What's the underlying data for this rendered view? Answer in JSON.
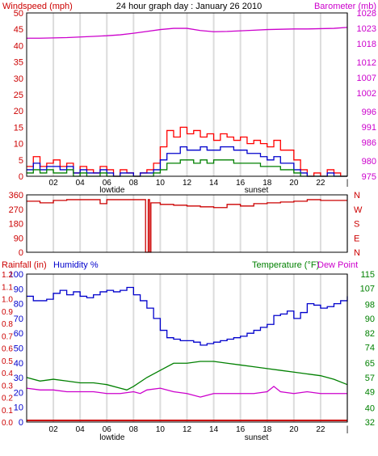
{
  "colors": {
    "background": "#ffffff",
    "plot_bg": "#ffffff",
    "frame": "#000000",
    "grid": "#dcdcdc",
    "windspeed": "#cc0000",
    "gust": "#ff0000",
    "wind_avg": "#0000cc",
    "wind_min": "#008000",
    "barometer": "#cc00cc",
    "direction": "#cc0000",
    "humidity": "#0000cc",
    "temperature": "#008000",
    "dewpoint": "#cc00cc",
    "rainfall": "#cc0000"
  },
  "chart_data": [
    {
      "type": "line",
      "title": "24 hour graph day : January 26 2010",
      "ylabel": "Windspeed (mph)",
      "ylabel_right": "Barometer (mb)",
      "ylim": [
        0,
        50
      ],
      "yticks": [
        0,
        5,
        10,
        15,
        20,
        25,
        30,
        35,
        40,
        45,
        50
      ],
      "y2lim": [
        975,
        1028
      ],
      "y2ticks": [
        975,
        980,
        986,
        991,
        996,
        1002,
        1007,
        1012,
        1018,
        1023,
        1028
      ],
      "xlim": [
        0,
        24
      ],
      "xticks": [
        "02",
        "04",
        "06",
        "08",
        "10",
        "12",
        "14",
        "16",
        "18",
        "20",
        "22",
        "|"
      ],
      "xtick_positions": [
        2,
        4,
        6,
        8,
        10,
        12,
        14,
        16,
        18,
        20,
        22,
        24
      ],
      "annotations": [
        {
          "text": "lowtide",
          "x": 6.4
        },
        {
          "text": "sunset",
          "x": 17.2
        }
      ],
      "grid": true,
      "series": [
        {
          "name": "",
          "axis": "right",
          "color_key": "barometer",
          "x": [
            0,
            1,
            2,
            3,
            4,
            5,
            6,
            7,
            8,
            9,
            10,
            11,
            12,
            13,
            14,
            15,
            16,
            17,
            18,
            19,
            20,
            21,
            22,
            23,
            24
          ],
          "y": [
            1019.8,
            1019.8,
            1019.9,
            1020.0,
            1020.2,
            1020.4,
            1020.6,
            1020.9,
            1021.4,
            1022.0,
            1022.6,
            1023.0,
            1023.0,
            1022.3,
            1021.9,
            1022.0,
            1022.2,
            1022.4,
            1022.6,
            1022.7,
            1022.8,
            1022.8,
            1022.9,
            1023.0,
            1023.3
          ]
        },
        {
          "name": "",
          "axis": "left",
          "color_key": "gust",
          "x": [
            0,
            0.5,
            1,
            1.5,
            2,
            2.5,
            3,
            3.5,
            4,
            4.5,
            5,
            5.5,
            6,
            6.5,
            7,
            7.5,
            8,
            8.5,
            9,
            9.5,
            10,
            10.5,
            11,
            11.5,
            12,
            12.5,
            13,
            13.5,
            14,
            14.5,
            15,
            15.5,
            16,
            16.5,
            17,
            17.5,
            18,
            18.5,
            19,
            19.5,
            20,
            20.5,
            21,
            21.5,
            22,
            22.5,
            23,
            23.5,
            24
          ],
          "y": [
            3,
            6,
            3,
            4,
            5,
            3,
            4,
            1,
            3,
            2,
            1,
            3,
            2,
            0,
            2,
            1,
            0,
            1,
            2,
            4,
            9,
            14,
            12,
            15,
            13,
            14,
            12,
            13,
            11,
            13,
            12,
            11,
            12,
            10,
            11,
            10,
            9,
            11,
            8,
            8,
            5,
            2,
            0,
            1,
            0,
            2,
            1,
            0,
            0
          ]
        },
        {
          "name": "",
          "axis": "left",
          "color_key": "wind_avg",
          "x": [
            0,
            0.5,
            1,
            1.5,
            2,
            2.5,
            3,
            3.5,
            4,
            4.5,
            5,
            5.5,
            6,
            6.5,
            7,
            7.5,
            8,
            8.5,
            9,
            9.5,
            10,
            10.5,
            11,
            11.5,
            12,
            12.5,
            13,
            13.5,
            14,
            14.5,
            15,
            15.5,
            16,
            16.5,
            17,
            17.5,
            18,
            18.5,
            19,
            19.5,
            20,
            20.5,
            21,
            21.5,
            22,
            22.5,
            23,
            23.5,
            24
          ],
          "y": [
            2,
            4,
            2,
            3,
            3,
            2,
            3,
            1,
            2,
            1,
            1,
            2,
            1,
            0,
            1,
            1,
            0,
            1,
            1,
            2,
            5,
            7,
            7,
            9,
            8,
            8,
            9,
            8,
            8,
            9,
            9,
            8,
            8,
            7,
            7,
            6,
            5,
            6,
            4,
            4,
            2,
            1,
            0,
            0,
            0,
            1,
            0,
            0,
            0
          ]
        },
        {
          "name": "",
          "axis": "left",
          "color_key": "wind_min",
          "x": [
            0,
            0.5,
            1,
            1.5,
            2,
            2.5,
            3,
            3.5,
            4,
            4.5,
            5,
            5.5,
            6,
            6.5,
            7,
            7.5,
            8,
            8.5,
            9,
            9.5,
            10,
            10.5,
            11,
            11.5,
            12,
            12.5,
            13,
            13.5,
            14,
            14.5,
            15,
            15.5,
            16,
            16.5,
            17,
            17.5,
            18,
            18.5,
            19,
            19.5,
            20,
            20.5,
            21,
            21.5,
            22,
            22.5,
            23,
            23.5,
            24
          ],
          "y": [
            1,
            2,
            1,
            2,
            1,
            1,
            2,
            0,
            1,
            0,
            0,
            1,
            0,
            0,
            0,
            0,
            0,
            0,
            0,
            1,
            2,
            4,
            4,
            5,
            5,
            4,
            5,
            4,
            5,
            5,
            5,
            4,
            4,
            4,
            4,
            3,
            3,
            3,
            2,
            2,
            1,
            0,
            0,
            0,
            0,
            0,
            0,
            0,
            0
          ]
        }
      ]
    },
    {
      "type": "line",
      "ylim": [
        0,
        360
      ],
      "yticks": [
        0,
        90,
        180,
        270,
        360
      ],
      "y2ticks": [
        "N",
        "E",
        "S",
        "W",
        "N"
      ],
      "xlim": [
        0,
        24
      ],
      "grid": true,
      "series": [
        {
          "name": "",
          "color_key": "direction",
          "x": [
            0,
            1,
            2,
            3,
            4,
            5,
            5.5,
            6,
            7,
            8,
            8.8,
            8.9,
            9.0,
            9.1,
            9.2,
            9.3,
            10,
            11,
            12,
            13,
            14,
            15,
            16,
            17,
            18,
            19,
            20,
            21,
            22,
            23,
            24
          ],
          "y": [
            320,
            310,
            325,
            330,
            330,
            330,
            305,
            330,
            330,
            330,
            330,
            0,
            0,
            330,
            0,
            310,
            300,
            295,
            290,
            285,
            280,
            300,
            290,
            305,
            310,
            315,
            320,
            330,
            325,
            325,
            325
          ]
        }
      ]
    },
    {
      "type": "line",
      "ylabel": "Rainfall (in)",
      "ylabel2": "Humidity %",
      "ylabel_right": "Temperature (°F)",
      "ylabel_right2": "Dew Point",
      "ylim": [
        0,
        100
      ],
      "yticks": [
        0,
        10,
        20,
        30,
        40,
        50,
        60,
        70,
        80,
        90,
        100
      ],
      "rain_ticks": [
        "0.0",
        "0.1",
        "0.2",
        "0.3",
        "0.4",
        "0.5",
        "0.6",
        "0.7",
        "0.8",
        "0.9",
        "1.0",
        "1.1",
        "1.2"
      ],
      "y2lim": [
        32,
        115
      ],
      "y2ticks": [
        32,
        40,
        49,
        57,
        65,
        74,
        82,
        90,
        98,
        107,
        115
      ],
      "xlim": [
        0,
        24
      ],
      "xticks": [
        "02",
        "04",
        "06",
        "08",
        "10",
        "12",
        "14",
        "16",
        "18",
        "20",
        "22",
        "|"
      ],
      "xtick_positions": [
        2,
        4,
        6,
        8,
        10,
        12,
        14,
        16,
        18,
        20,
        22,
        24
      ],
      "annotations": [
        {
          "text": "lowtide",
          "x": 6.4
        },
        {
          "text": "sunset",
          "x": 17.2
        }
      ],
      "grid": true,
      "series": [
        {
          "name": "",
          "axis": "left",
          "color_key": "humidity",
          "x": [
            0,
            0.5,
            1,
            1.5,
            2,
            2.5,
            3,
            3.5,
            4,
            4.5,
            5,
            5.5,
            6,
            6.5,
            7,
            7.5,
            8,
            8.5,
            9,
            9.5,
            10,
            10.5,
            11,
            11.5,
            12,
            12.5,
            13,
            13.5,
            14,
            14.5,
            15,
            15.5,
            16,
            16.5,
            17,
            17.5,
            18,
            18.5,
            19,
            19.5,
            20,
            20.5,
            21,
            21.5,
            22,
            22.5,
            23,
            23.5,
            24
          ],
          "y": [
            85,
            82,
            82,
            83,
            87,
            89,
            86,
            88,
            85,
            84,
            86,
            88,
            89,
            88,
            89,
            91,
            86,
            82,
            77,
            70,
            62,
            57,
            56,
            55,
            55,
            54,
            52,
            53,
            54,
            55,
            56,
            57,
            58,
            60,
            62,
            64,
            66,
            72,
            73,
            75,
            70,
            74,
            80,
            79,
            77,
            78,
            80,
            82,
            85
          ]
        },
        {
          "name": "",
          "axis": "right",
          "color_key": "temperature",
          "x": [
            0,
            1,
            2,
            3,
            4,
            5,
            6,
            7,
            7.5,
            8,
            9,
            10,
            11,
            12,
            13,
            14,
            15,
            16,
            17,
            18,
            19,
            20,
            21,
            22,
            23,
            24
          ],
          "y": [
            57,
            55,
            56,
            55,
            54,
            54,
            53,
            51,
            50,
            52,
            57,
            61,
            65,
            65,
            66,
            66,
            65,
            64,
            63,
            62,
            61,
            60,
            59,
            58,
            56,
            53
          ]
        },
        {
          "name": "",
          "axis": "right",
          "color_key": "dewpoint",
          "x": [
            0,
            1,
            2,
            3,
            4,
            5,
            6,
            7,
            8,
            8.5,
            9,
            10,
            11,
            12,
            13,
            14,
            15,
            16,
            17,
            18,
            18.5,
            19,
            20,
            21,
            22,
            23,
            24
          ],
          "y": [
            51,
            50,
            50,
            49,
            49,
            49,
            48,
            48,
            49,
            48,
            50,
            51,
            49,
            48,
            46,
            48,
            48,
            48,
            48,
            49,
            52,
            49,
            48,
            49,
            48,
            48,
            48
          ]
        },
        {
          "name": "",
          "axis": "rain",
          "color_key": "rainfall",
          "x": [
            0,
            24
          ],
          "y": [
            0,
            0
          ]
        }
      ]
    }
  ]
}
